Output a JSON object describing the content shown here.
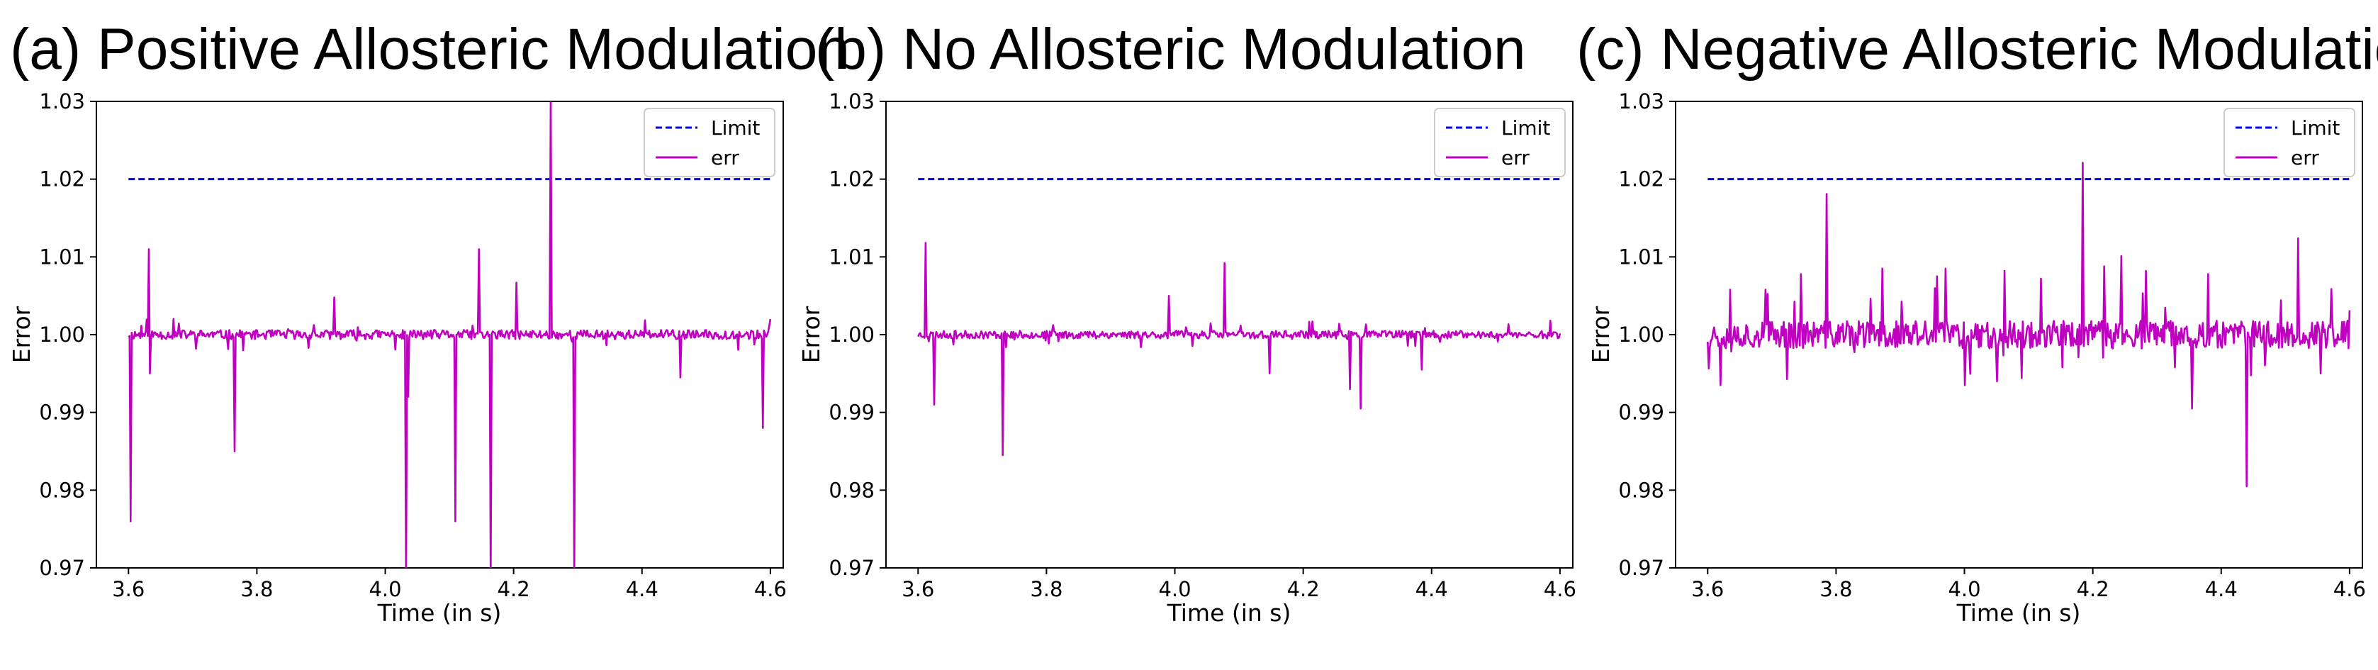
{
  "colors": {
    "limit": "#0000ff",
    "err": "#c000c0",
    "axis": "#000000",
    "legend_border": "#cccccc"
  },
  "legend_words": {
    "limit": "Limit",
    "err": "err"
  },
  "chart_data": [
    {
      "type": "line",
      "title": "(a) Positive Allosteric Modulation",
      "xlabel": "Time (in s)",
      "ylabel": "Error",
      "xlim": [
        3.55,
        4.62
      ],
      "ylim": [
        0.97,
        1.03
      ],
      "xticks": [
        3.6,
        3.8,
        4.0,
        4.2,
        4.4,
        4.6
      ],
      "xtick_labels": [
        "3.6",
        "3.8",
        "4.0",
        "4.2",
        "4.4",
        "4.6"
      ],
      "yticks": [
        0.97,
        0.98,
        0.99,
        1.0,
        1.01,
        1.02,
        1.03
      ],
      "ytick_labels": [
        "0.97",
        "0.98",
        "0.99",
        "1.00",
        "1.01",
        "1.02",
        "1.03"
      ],
      "grid": false,
      "legend": "top-right",
      "series": [
        {
          "name": "Limit",
          "style": "dashed",
          "x": [
            3.6,
            4.6
          ],
          "y": [
            1.02,
            1.02
          ]
        },
        {
          "name": "err",
          "style": "solid",
          "base": 1.0,
          "noise": 0.0006,
          "seed": 11,
          "spikes": [
            [
              3.603,
              0.976
            ],
            [
              3.631,
              1.011
            ],
            [
              3.633,
              0.995
            ],
            [
              3.766,
              0.985
            ],
            [
              3.92,
              1.0048
            ],
            [
              4.032,
              0.968
            ],
            [
              4.036,
              0.992
            ],
            [
              4.11,
              0.976
            ],
            [
              4.146,
              1.011
            ],
            [
              4.165,
              0.968
            ],
            [
              4.205,
              1.0067
            ],
            [
              4.258,
              1.031
            ],
            [
              4.295,
              0.968
            ],
            [
              4.46,
              0.9945
            ],
            [
              4.588,
              0.988
            ]
          ],
          "x_start": 3.6,
          "x_end": 4.6
        }
      ]
    },
    {
      "type": "line",
      "title": "(b)   No Allosteric Modulation",
      "xlabel": "Time (in s)",
      "ylabel": "Error",
      "xlim": [
        3.55,
        4.62
      ],
      "ylim": [
        0.97,
        1.03
      ],
      "xticks": [
        3.6,
        3.8,
        4.0,
        4.2,
        4.4,
        4.6
      ],
      "xtick_labels": [
        "3.6",
        "3.8",
        "4.0",
        "4.2",
        "4.4",
        "4.6"
      ],
      "yticks": [
        0.97,
        0.98,
        0.99,
        1.0,
        1.01,
        1.02,
        1.03
      ],
      "ytick_labels": [
        "0.97",
        "0.98",
        "0.99",
        "1.00",
        "1.01",
        "1.02",
        "1.03"
      ],
      "grid": false,
      "legend": "top-right",
      "series": [
        {
          "name": "Limit",
          "style": "dashed",
          "x": [
            3.6,
            4.6
          ],
          "y": [
            1.02,
            1.02
          ]
        },
        {
          "name": "err",
          "style": "solid",
          "base": 1.0,
          "noise": 0.0005,
          "seed": 23,
          "spikes": [
            [
              3.612,
              1.0118
            ],
            [
              3.625,
              0.991
            ],
            [
              3.732,
              0.9845
            ],
            [
              3.99,
              1.005
            ],
            [
              4.078,
              1.0092
            ],
            [
              4.148,
              0.995
            ],
            [
              4.272,
              0.993
            ],
            [
              4.29,
              0.9905
            ],
            [
              4.385,
              0.9955
            ],
            [
              4.585,
              1.0018
            ]
          ],
          "x_start": 3.6,
          "x_end": 4.6
        }
      ]
    },
    {
      "type": "line",
      "title": "(c) Negative Allosteric Modulation",
      "xlabel": "Time (in s)",
      "ylabel": "Error",
      "xlim": [
        3.55,
        4.62
      ],
      "ylim": [
        0.97,
        1.03
      ],
      "xticks": [
        3.6,
        3.8,
        4.0,
        4.2,
        4.4,
        4.6
      ],
      "xtick_labels": [
        "3.6",
        "3.8",
        "4.0",
        "4.2",
        "4.4",
        "4.6"
      ],
      "yticks": [
        0.97,
        0.98,
        0.99,
        1.0,
        1.01,
        1.02,
        1.03
      ],
      "ytick_labels": [
        "0.97",
        "0.98",
        "0.99",
        "1.00",
        "1.01",
        "1.02",
        "1.03"
      ],
      "grid": false,
      "legend": "top-right",
      "series": [
        {
          "name": "Limit",
          "style": "dashed",
          "x": [
            3.6,
            4.6
          ],
          "y": [
            1.02,
            1.02
          ]
        },
        {
          "name": "err",
          "style": "solid",
          "base": 1.0,
          "noise": 0.0018,
          "seed": 37,
          "spikes": [
            [
              3.635,
              1.0058
            ],
            [
              3.62,
              0.9935
            ],
            [
              3.69,
              1.0058
            ],
            [
              3.745,
              1.0078
            ],
            [
              3.786,
              1.0181
            ],
            [
              3.872,
              1.0085
            ],
            [
              3.957,
              1.0075
            ],
            [
              3.97,
              1.0085
            ],
            [
              4.062,
              1.0082
            ],
            [
              4.12,
              1.0072
            ],
            [
              4.185,
              1.0221
            ],
            [
              4.218,
              1.0088
            ],
            [
              4.245,
              1.0101
            ],
            [
              4.282,
              1.0082
            ],
            [
              4.355,
              0.9905
            ],
            [
              4.38,
              1.0078
            ],
            [
              4.44,
              0.9805
            ],
            [
              4.52,
              1.0124
            ],
            [
              4.555,
              0.995
            ],
            [
              4.05,
              0.994
            ],
            [
              4.0,
              0.9935
            ]
          ],
          "x_start": 3.6,
          "x_end": 4.6
        }
      ]
    }
  ]
}
